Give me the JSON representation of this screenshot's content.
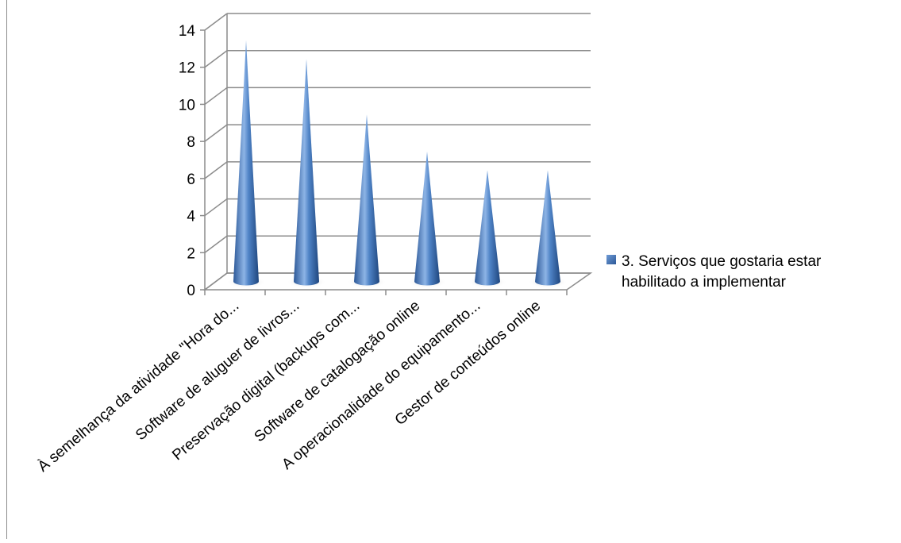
{
  "chart_data": {
    "type": "bar",
    "style": "3d-cone",
    "categories": [
      "À semelhança da atividade \"Hora do...",
      "Software de aluguer de livros...",
      "Preservação digital (backups com...",
      "Software de catalogação online",
      "A operacionalidade do equipamento...",
      "Gestor de conteúdos online"
    ],
    "series": [
      {
        "name": "3. Serviços que gostaria estar habilitado a implementar",
        "values": [
          13,
          12,
          9,
          7,
          6,
          6
        ],
        "color": "#4a7ebb"
      }
    ],
    "ylim": [
      0,
      14
    ],
    "yticks": [
      0,
      2,
      4,
      6,
      8,
      10,
      12,
      14
    ],
    "grid": true,
    "legend": "right",
    "legend_lines": [
      "3. Serviços que gostaria estar",
      "habilitado a implementar"
    ]
  }
}
